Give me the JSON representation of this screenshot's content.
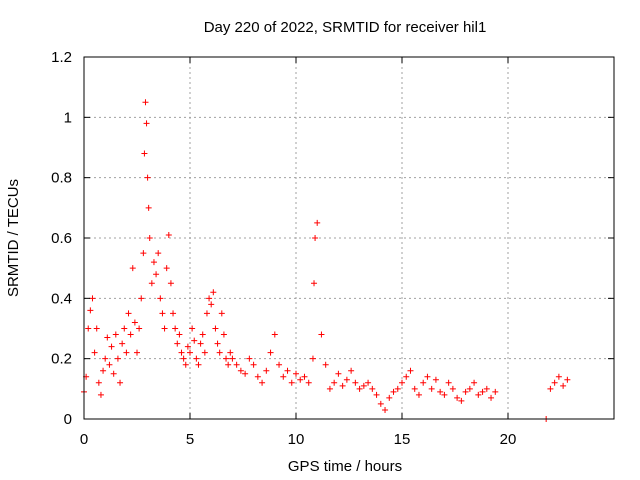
{
  "chart_data": {
    "type": "scatter",
    "title": "Day 220 of 2022, SRMTID for receiver hil1",
    "xlabel": "GPS time / hours",
    "ylabel": "SRMTID / TECUs",
    "xlim": [
      0,
      25
    ],
    "ylim": [
      0,
      1.2
    ],
    "xticks": [
      0,
      5,
      10,
      15,
      20
    ],
    "yticks": [
      0,
      0.2,
      0.4,
      0.6,
      0.8,
      1,
      1.2
    ],
    "xtick_labels": [
      "0",
      "5",
      "10",
      "15",
      "20"
    ],
    "ytick_labels": [
      "0",
      "0.2",
      "0.4",
      "0.6",
      "0.8",
      "1",
      "1.2"
    ],
    "grid": true,
    "marker": "+",
    "series": [
      {
        "name": "SRMTID",
        "color": "#ff0000",
        "x": [
          0.0,
          0.1,
          0.2,
          0.3,
          0.4,
          0.5,
          0.6,
          0.7,
          0.8,
          0.9,
          1.0,
          1.1,
          1.2,
          1.3,
          1.4,
          1.5,
          1.6,
          1.7,
          1.8,
          1.9,
          2.0,
          2.1,
          2.2,
          2.3,
          2.4,
          2.5,
          2.6,
          2.7,
          2.8,
          2.85,
          2.9,
          2.95,
          3.0,
          3.05,
          3.1,
          3.2,
          3.3,
          3.4,
          3.5,
          3.6,
          3.7,
          3.8,
          3.9,
          4.0,
          4.1,
          4.2,
          4.3,
          4.4,
          4.5,
          4.6,
          4.7,
          4.8,
          4.9,
          5.0,
          5.1,
          5.2,
          5.3,
          5.4,
          5.5,
          5.6,
          5.7,
          5.8,
          5.9,
          6.0,
          6.1,
          6.2,
          6.3,
          6.4,
          6.5,
          6.6,
          6.7,
          6.8,
          6.9,
          7.0,
          7.2,
          7.4,
          7.6,
          7.8,
          8.0,
          8.2,
          8.4,
          8.6,
          8.8,
          9.0,
          9.2,
          9.4,
          9.6,
          9.8,
          10.0,
          10.2,
          10.4,
          10.6,
          10.8,
          10.85,
          10.9,
          11.0,
          11.2,
          11.4,
          11.6,
          11.8,
          12.0,
          12.2,
          12.4,
          12.6,
          12.8,
          13.0,
          13.2,
          13.4,
          13.6,
          13.8,
          14.0,
          14.2,
          14.4,
          14.6,
          14.8,
          15.0,
          15.2,
          15.4,
          15.6,
          15.8,
          16.0,
          16.2,
          16.4,
          16.6,
          16.8,
          17.0,
          17.2,
          17.4,
          17.6,
          17.8,
          18.0,
          18.2,
          18.4,
          18.6,
          18.8,
          19.0,
          19.2,
          19.4,
          21.8,
          22.0,
          22.2,
          22.4,
          22.6,
          22.8
        ],
        "y": [
          0.09,
          0.14,
          0.3,
          0.36,
          0.4,
          0.22,
          0.3,
          0.12,
          0.08,
          0.16,
          0.2,
          0.27,
          0.18,
          0.24,
          0.15,
          0.28,
          0.2,
          0.12,
          0.25,
          0.3,
          0.22,
          0.35,
          0.28,
          0.5,
          0.32,
          0.22,
          0.3,
          0.4,
          0.55,
          0.88,
          1.05,
          0.98,
          0.8,
          0.7,
          0.6,
          0.45,
          0.52,
          0.48,
          0.55,
          0.4,
          0.35,
          0.3,
          0.5,
          0.61,
          0.45,
          0.35,
          0.3,
          0.25,
          0.28,
          0.22,
          0.2,
          0.18,
          0.24,
          0.22,
          0.3,
          0.26,
          0.2,
          0.18,
          0.25,
          0.28,
          0.22,
          0.35,
          0.4,
          0.38,
          0.42,
          0.3,
          0.25,
          0.22,
          0.35,
          0.28,
          0.2,
          0.18,
          0.22,
          0.2,
          0.18,
          0.16,
          0.15,
          0.2,
          0.18,
          0.14,
          0.12,
          0.16,
          0.22,
          0.28,
          0.18,
          0.14,
          0.16,
          0.12,
          0.15,
          0.13,
          0.14,
          0.12,
          0.2,
          0.45,
          0.6,
          0.65,
          0.28,
          0.18,
          0.1,
          0.12,
          0.15,
          0.11,
          0.13,
          0.16,
          0.12,
          0.1,
          0.11,
          0.12,
          0.1,
          0.08,
          0.05,
          0.03,
          0.07,
          0.09,
          0.1,
          0.12,
          0.14,
          0.16,
          0.1,
          0.08,
          0.12,
          0.14,
          0.1,
          0.13,
          0.09,
          0.08,
          0.12,
          0.1,
          0.07,
          0.06,
          0.09,
          0.1,
          0.12,
          0.08,
          0.09,
          0.1,
          0.07,
          0.09,
          0.0,
          0.1,
          0.12,
          0.14,
          0.11,
          0.13
        ]
      }
    ]
  }
}
